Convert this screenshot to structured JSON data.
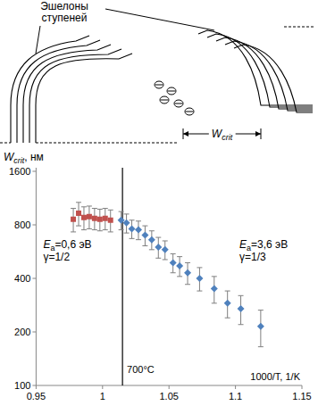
{
  "diagram": {
    "label": "Эшелоны ступеней",
    "dimension": {
      "main": "W",
      "sub": "crit"
    }
  },
  "chart_data": {
    "type": "scatter",
    "y_label": {
      "main": "W",
      "sub": "crit",
      "suffix": ", нм"
    },
    "x_label": "1000/T, 1/K",
    "xlim": [
      0.95,
      1.15
    ],
    "xticks": [
      0.95,
      1,
      1.05,
      1.1,
      1.15
    ],
    "ylim": [
      100,
      1600
    ],
    "yticks": [
      100,
      200,
      400,
      800,
      1600
    ],
    "log": "y",
    "grid": false,
    "vline": {
      "x": 1.015,
      "label": "700°C"
    },
    "annotations": [
      {
        "lines": [
          {
            "main": "E",
            "sub": "a",
            "suffix": "=0,6 эВ"
          },
          {
            "main": "γ=1/2"
          }
        ]
      },
      {
        "lines": [
          {
            "main": "E",
            "sub": "a",
            "suffix": "=3,6 эВ"
          },
          {
            "main": "γ=1/3"
          }
        ]
      }
    ],
    "series": [
      {
        "color": "#c0504d",
        "marker": "square",
        "x": [
          0.978,
          0.982,
          0.986,
          0.99,
          0.994,
          0.998,
          1.002,
          1.006
        ],
        "values": [
          860,
          930,
          880,
          890,
          870,
          860,
          870,
          850
        ],
        "errors": [
          130,
          140,
          130,
          130,
          120,
          120,
          120,
          120
        ]
      },
      {
        "color": "#4f81bd",
        "marker": "diamond",
        "x": [
          1.014,
          1.018,
          1.022,
          1.027,
          1.032,
          1.037,
          1.042,
          1.047,
          1.053,
          1.058,
          1.064,
          1.073,
          1.084,
          1.094,
          1.104,
          1.119
        ],
        "values": [
          850,
          820,
          760,
          750,
          700,
          660,
          600,
          580,
          490,
          470,
          430,
          400,
          350,
          290,
          270,
          215
        ],
        "errors": [
          100,
          100,
          90,
          90,
          90,
          80,
          80,
          70,
          60,
          60,
          60,
          60,
          60,
          50,
          50,
          50
        ]
      }
    ]
  }
}
